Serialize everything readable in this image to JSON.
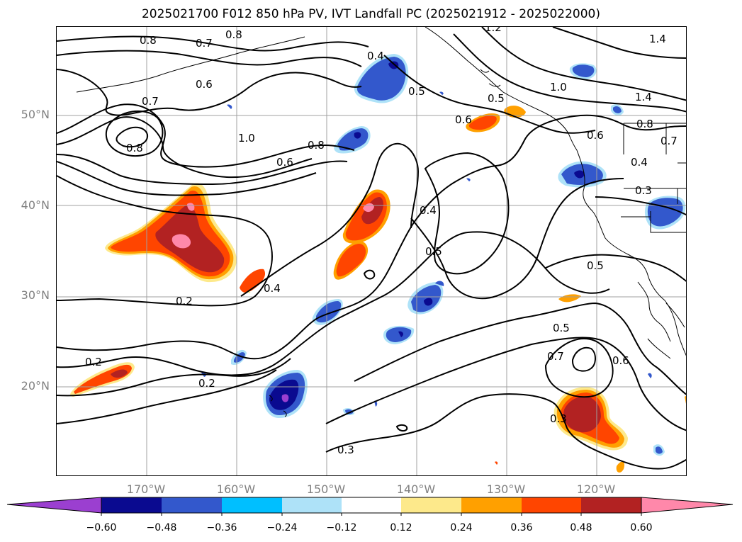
{
  "title": "2025021700 F012 850 hPa PV, IVT Landfall PC (2025021912 - 2025022000)",
  "lat_labels": [
    "50°N",
    "40°N",
    "30°N",
    "20°N"
  ],
  "lon_labels": [
    "170°W",
    "160°W",
    "150°W",
    "140°W",
    "130°W",
    "120°W"
  ],
  "colorbar": {
    "ticks": [
      "−0.60",
      "−0.48",
      "−0.36",
      "−0.24",
      "−0.12",
      "0.12",
      "0.24",
      "0.36",
      "0.48",
      "0.60"
    ],
    "colors": {
      "under": "#9b3fd0",
      "neg_060": "#0a0a90",
      "neg_048": "#3358cc",
      "neg_036": "#00bfff",
      "neg_024": "#aee2f8",
      "zero": "#ffffff",
      "pos_012": "#fde98b",
      "pos_024": "#ffa000",
      "pos_036": "#ff4500",
      "pos_048": "#b22222",
      "over": "#ff88aa"
    }
  },
  "contour_labels": [
    "0.8",
    "0.7",
    "0.8",
    "0.7",
    "0.6",
    "0.8",
    "1.0",
    "0.8",
    "0.6",
    "0.4",
    "0.5",
    "0.5",
    "0.6",
    "1.2",
    "1.4",
    "1.0",
    "1.4",
    "0.8",
    "0.7",
    "0.6",
    "0.4",
    "0.3",
    "0.4",
    "0.5",
    "0.4",
    "0.2",
    "0.5",
    "0.5",
    "0.7",
    "0.6",
    "0.3",
    "0.2",
    "0.2",
    "0.3"
  ]
}
